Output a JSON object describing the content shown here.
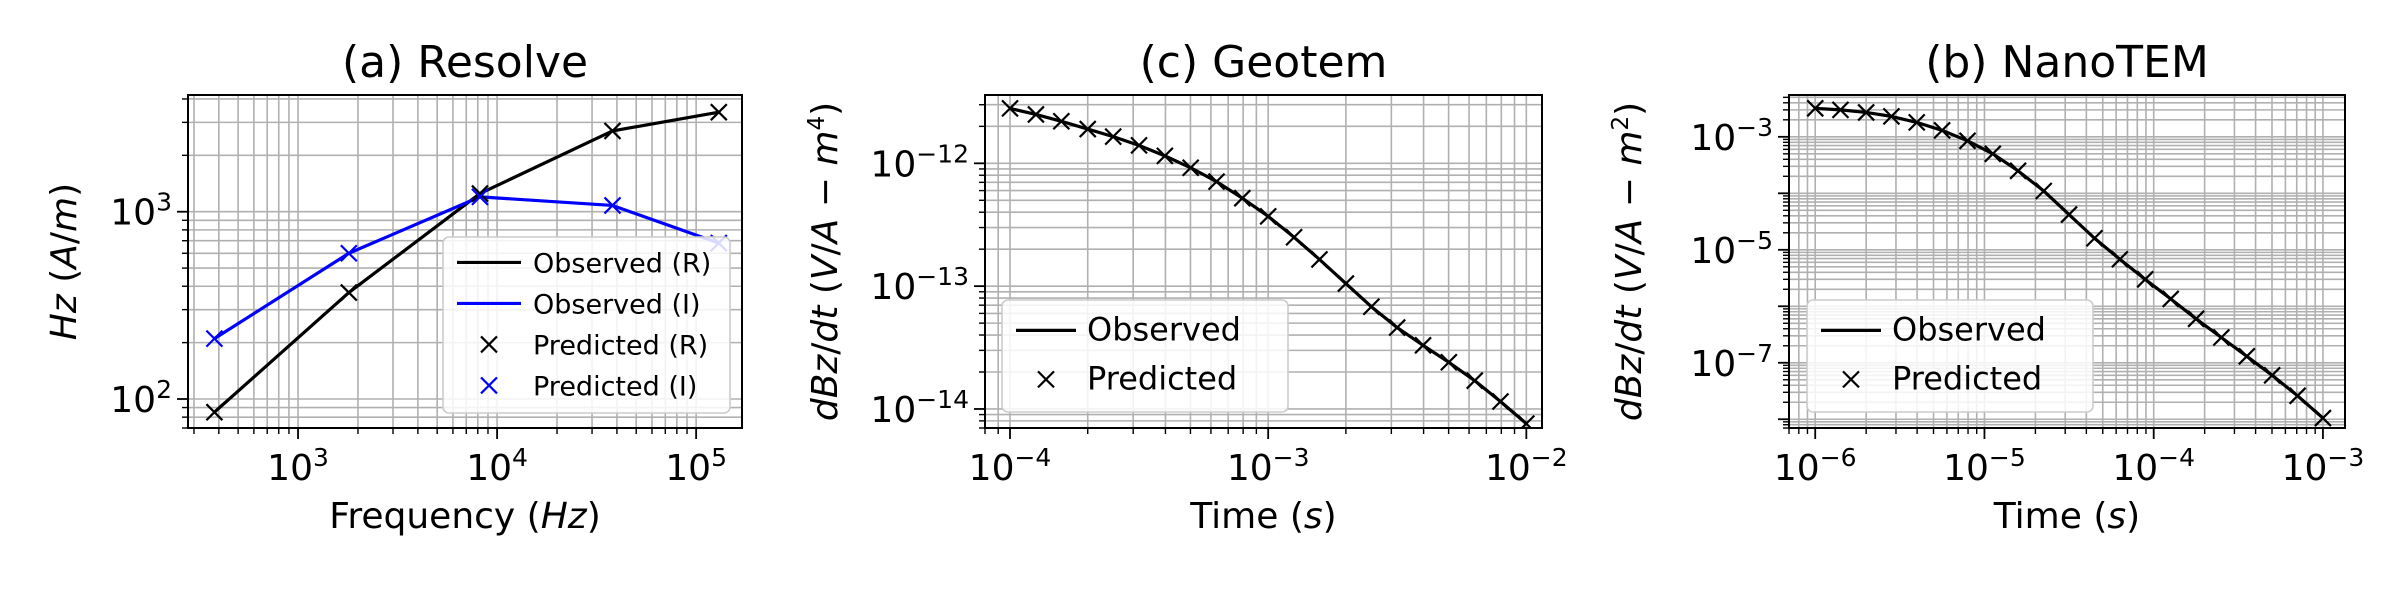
{
  "chart_data": [
    {
      "id": "resolve",
      "type": "line",
      "title": "(a) Resolve",
      "xlabel": "Frequency (Hz)",
      "xlabel_parts": [
        [
          "Frequency (",
          false
        ],
        [
          "Hz",
          true
        ],
        [
          ")",
          false
        ]
      ],
      "ylabel": "Hz (A/m)",
      "ylabel_parts": [
        [
          "Hz",
          true
        ],
        [
          " (",
          false
        ],
        [
          "A",
          true
        ],
        [
          "/",
          false
        ],
        [
          "m",
          true
        ],
        [
          ")",
          false
        ]
      ],
      "xscale": "log",
      "yscale": "log",
      "xlim": [
        280,
        170000
      ],
      "ylim": [
        70,
        4200
      ],
      "grid": true,
      "xticks": [
        {
          "mant": "10",
          "exp": "3",
          "value": 1000
        },
        {
          "mant": "10",
          "exp": "4",
          "value": 10000
        },
        {
          "mant": "10",
          "exp": "5",
          "value": 100000
        }
      ],
      "yticks": [
        {
          "mant": "10",
          "exp": "2",
          "value": 100
        },
        {
          "mant": "10",
          "exp": "3",
          "value": 1000
        }
      ],
      "legend_position": "lower-right",
      "series": [
        {
          "name": "Observed (R)",
          "kind": "line",
          "color": "#000000",
          "x": [
            380,
            1800,
            8200,
            38000,
            130000
          ],
          "y": [
            85,
            370,
            1250,
            2700,
            3400
          ]
        },
        {
          "name": "Observed (I)",
          "kind": "line",
          "color": "#0000ff",
          "x": [
            380,
            1800,
            8200,
            38000,
            130000
          ],
          "y": [
            210,
            600,
            1200,
            1080,
            680
          ]
        },
        {
          "name": "Predicted (R)",
          "kind": "marker",
          "color": "#000000",
          "x": [
            380,
            1800,
            8200,
            38000,
            130000
          ],
          "y": [
            85,
            370,
            1250,
            2700,
            3400
          ]
        },
        {
          "name": "Predicted (I)",
          "kind": "marker",
          "color": "#0000ff",
          "x": [
            380,
            1800,
            8200,
            38000,
            130000
          ],
          "y": [
            210,
            600,
            1200,
            1080,
            680
          ]
        }
      ]
    },
    {
      "id": "geotem",
      "type": "line",
      "title": "(c) Geotem",
      "xlabel": "Time (s)",
      "xlabel_parts": [
        [
          "Time (",
          false
        ],
        [
          "s",
          true
        ],
        [
          ")",
          false
        ]
      ],
      "ylabel": "dBz/dt (V/A − m⁴)",
      "ylabel_parts": [
        [
          "dBz",
          true
        ],
        [
          "/",
          false
        ],
        [
          "dt",
          true
        ],
        [
          " (",
          false
        ],
        [
          "V",
          true
        ],
        [
          "/",
          false
        ],
        [
          "A",
          true
        ],
        [
          " − ",
          false
        ],
        [
          "m",
          true
        ],
        [
          "4",
          "sup"
        ],
        [
          ")",
          false
        ]
      ],
      "xscale": "log",
      "yscale": "log",
      "xlim": [
        8e-05,
        0.0115
      ],
      "ylim": [
        7e-15,
        3.6e-12
      ],
      "grid": true,
      "xticks": [
        {
          "mant": "10",
          "exp": "−4",
          "value": 0.0001
        },
        {
          "mant": "10",
          "exp": "−3",
          "value": 0.001
        },
        {
          "mant": "10",
          "exp": "−2",
          "value": 0.01
        }
      ],
      "yticks": [
        {
          "mant": "10",
          "exp": "−14",
          "value": 1e-14
        },
        {
          "mant": "10",
          "exp": "−13",
          "value": 1e-13
        },
        {
          "mant": "10",
          "exp": "−12",
          "value": 1e-12
        }
      ],
      "legend_position": "lower-left",
      "series": [
        {
          "name": "Observed",
          "kind": "line",
          "color": "#000000",
          "x": [
            0.0001,
            0.000126,
            0.000158,
            0.0002,
            0.000251,
            0.000316,
            0.000398,
            0.000501,
            0.000631,
            0.000794,
            0.001,
            0.00126,
            0.00158,
            0.002,
            0.00251,
            0.00316,
            0.00398,
            0.00501,
            0.00631,
            0.00794,
            0.01
          ],
          "y": [
            2.8e-12,
            2.5e-12,
            2.2e-12,
            1.9e-12,
            1.65e-12,
            1.4e-12,
            1.15e-12,
            9.2e-13,
            7.1e-13,
            5.2e-13,
            3.7e-13,
            2.5e-13,
            1.65e-13,
            1.05e-13,
            6.8e-14,
            4.6e-14,
            3.3e-14,
            2.4e-14,
            1.7e-14,
            1.15e-14,
            7.6e-15
          ]
        },
        {
          "name": "Predicted",
          "kind": "marker",
          "color": "#000000",
          "x": [
            0.0001,
            0.000126,
            0.000158,
            0.0002,
            0.000251,
            0.000316,
            0.000398,
            0.000501,
            0.000631,
            0.000794,
            0.001,
            0.00126,
            0.00158,
            0.002,
            0.00251,
            0.00316,
            0.00398,
            0.00501,
            0.00631,
            0.00794,
            0.01
          ],
          "y": [
            2.8e-12,
            2.5e-12,
            2.2e-12,
            1.9e-12,
            1.65e-12,
            1.4e-12,
            1.15e-12,
            9.2e-13,
            7.1e-13,
            5.2e-13,
            3.7e-13,
            2.5e-13,
            1.65e-13,
            1.05e-13,
            6.8e-14,
            4.6e-14,
            3.3e-14,
            2.4e-14,
            1.7e-14,
            1.15e-14,
            7.6e-15
          ]
        }
      ]
    },
    {
      "id": "nanotem",
      "type": "line",
      "title": "(b) NanoTEM",
      "xlabel": "Time (s)",
      "xlabel_parts": [
        [
          "Time (",
          false
        ],
        [
          "s",
          true
        ],
        [
          ")",
          false
        ]
      ],
      "ylabel": "dBz/dt (V/A − m²)",
      "ylabel_parts": [
        [
          "dBz",
          true
        ],
        [
          "/",
          false
        ],
        [
          "dt",
          true
        ],
        [
          " (",
          false
        ],
        [
          "V",
          true
        ],
        [
          "/",
          false
        ],
        [
          "A",
          true
        ],
        [
          " − ",
          false
        ],
        [
          "m",
          true
        ],
        [
          "2",
          "sup"
        ],
        [
          ")",
          false
        ]
      ],
      "xscale": "log",
      "yscale": "log",
      "xlim": [
        7e-07,
        0.00135
      ],
      "ylim": [
        7e-09,
        0.0055
      ],
      "grid": true,
      "xticks": [
        {
          "mant": "10",
          "exp": "−6",
          "value": 1e-06
        },
        {
          "mant": "10",
          "exp": "−5",
          "value": 1e-05
        },
        {
          "mant": "10",
          "exp": "−4",
          "value": 0.0001
        },
        {
          "mant": "10",
          "exp": "−3",
          "value": 0.001
        }
      ],
      "yticks": [
        {
          "mant": "10",
          "exp": "−7",
          "value": 1e-07
        },
        {
          "mant": "10",
          "exp": "−5",
          "value": 1e-05
        },
        {
          "mant": "10",
          "exp": "−3",
          "value": 0.001
        }
      ],
      "legend_position": "lower-left",
      "series": [
        {
          "name": "Observed",
          "kind": "line",
          "color": "#000000",
          "x": [
            1e-06,
            1.41e-06,
            2e-06,
            2.82e-06,
            3.98e-06,
            5.62e-06,
            7.94e-06,
            1.12e-05,
            1.58e-05,
            2.24e-05,
            3.16e-05,
            4.47e-05,
            6.31e-05,
            8.91e-05,
            0.000126,
            0.000178,
            0.000251,
            0.000355,
            0.000501,
            0.000708,
            0.001
          ],
          "y": [
            0.0032,
            0.003,
            0.0027,
            0.0023,
            0.0018,
            0.0013,
            0.00085,
            0.0005,
            0.00025,
            0.00011,
            4.2e-05,
            1.6e-05,
            6.8e-06,
            3e-06,
            1.35e-06,
            6e-07,
            2.8e-07,
            1.3e-07,
            6e-08,
            2.6e-08,
            1.05e-08
          ]
        },
        {
          "name": "Predicted",
          "kind": "marker",
          "color": "#000000",
          "x": [
            1e-06,
            1.41e-06,
            2e-06,
            2.82e-06,
            3.98e-06,
            5.62e-06,
            7.94e-06,
            1.12e-05,
            1.58e-05,
            2.24e-05,
            3.16e-05,
            4.47e-05,
            6.31e-05,
            8.91e-05,
            0.000126,
            0.000178,
            0.000251,
            0.000355,
            0.000501,
            0.000708,
            0.001
          ],
          "y": [
            0.0032,
            0.003,
            0.0027,
            0.0023,
            0.0018,
            0.0013,
            0.00085,
            0.0005,
            0.00025,
            0.00011,
            4.2e-05,
            1.6e-05,
            6.8e-06,
            3e-06,
            1.35e-06,
            6e-07,
            2.8e-07,
            1.3e-07,
            6e-08,
            2.6e-08,
            1.05e-08
          ]
        }
      ]
    }
  ]
}
